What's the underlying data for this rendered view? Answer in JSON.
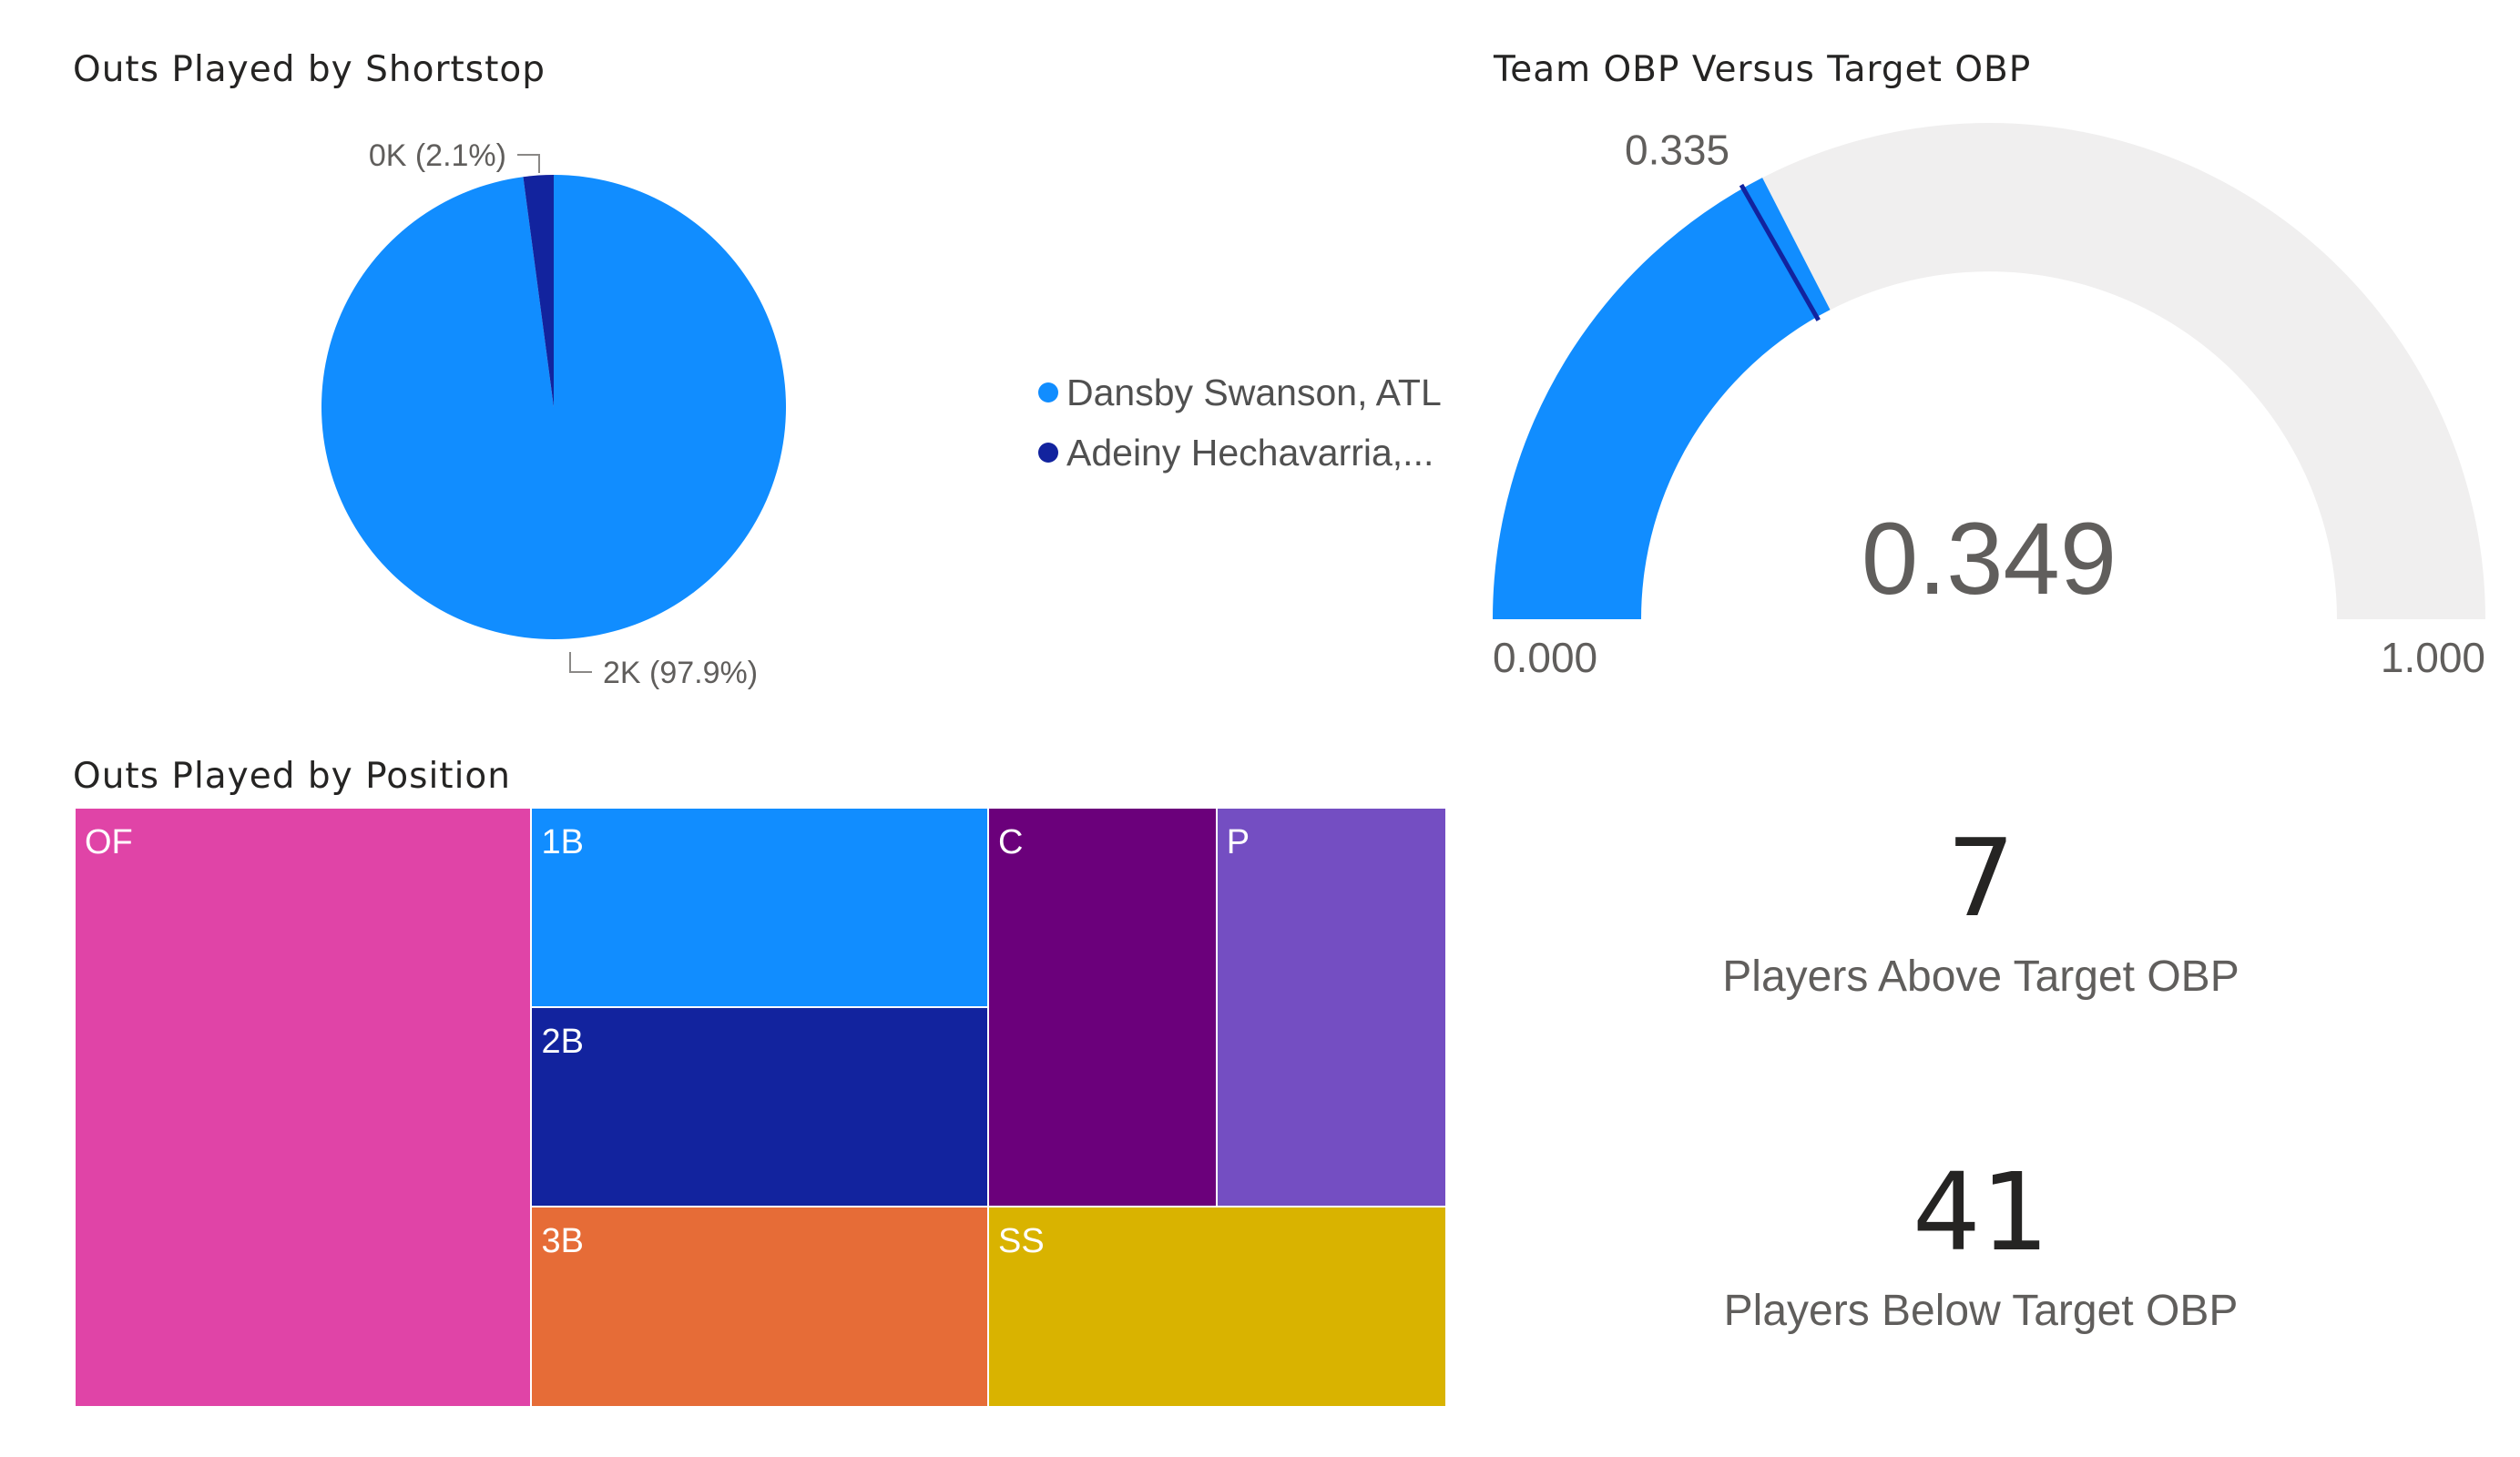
{
  "colors": {
    "blue": "#118DFF",
    "dark_blue": "#12239E",
    "magenta": "#E044A7",
    "orange": "#E66C37",
    "purple": "#6B007B",
    "violet": "#744EC2",
    "gold": "#D9B300",
    "gauge_track": "#F0EFEF"
  },
  "chart_data": [
    {
      "type": "pie",
      "title": "Outs Played by Shortstop",
      "slices": [
        {
          "name": "Dansby Swanson, ATL",
          "legend_label": "Dansby Swanson, ATL",
          "value": 97.9,
          "data_label": "2K (97.9%)",
          "color": "#118DFF"
        },
        {
          "name": "Adeiny Hechavarria",
          "legend_label": "Adeiny Hechavarria,...",
          "value": 2.1,
          "data_label": "0K (2.1%)",
          "color": "#12239E"
        }
      ],
      "legend_placement": "right"
    },
    {
      "type": "gauge",
      "title": "Team OBP Versus Target OBP",
      "value": 0.349,
      "value_label": "0.349",
      "min": 0,
      "max": 1,
      "min_label": "0.000",
      "max_label": "1.000",
      "target": 0.335,
      "target_label": "0.335"
    },
    {
      "type": "treemap",
      "title": "Outs Played by Position",
      "items": [
        {
          "label": "OF",
          "color": "#E044A7"
        },
        {
          "label": "1B",
          "color": "#118DFF"
        },
        {
          "label": "2B",
          "color": "#12239E"
        },
        {
          "label": "3B",
          "color": "#E66C37"
        },
        {
          "label": "C",
          "color": "#6B007B"
        },
        {
          "label": "P",
          "color": "#744EC2"
        },
        {
          "label": "SS",
          "color": "#D9B300"
        }
      ]
    }
  ],
  "cards": [
    {
      "value": "7",
      "label": "Players Above Target OBP"
    },
    {
      "value": "41",
      "label": "Players Below Target OBP"
    }
  ]
}
